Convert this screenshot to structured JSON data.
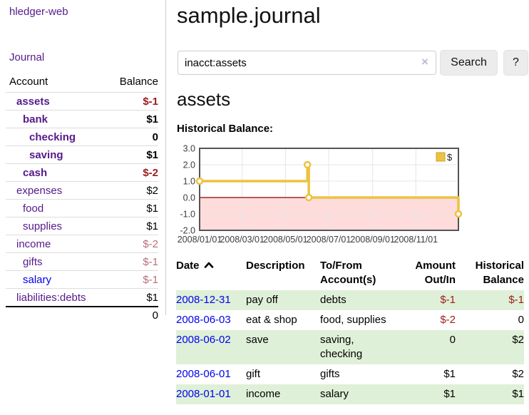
{
  "sidebar": {
    "title": "hledger-web",
    "journal_link": "Journal",
    "accounts": {
      "account_header": "Account",
      "balance_header": "Balance",
      "rows": [
        {
          "name": "assets",
          "level": 1,
          "bold": true,
          "balance": "$-1",
          "balance_style": "negstrong",
          "name_color": "purple"
        },
        {
          "name": "bank",
          "level": 2,
          "bold": true,
          "balance": "$1",
          "balance_style": "num",
          "name_color": "purple"
        },
        {
          "name": "checking",
          "level": 3,
          "bold": true,
          "balance": "0",
          "balance_style": "num",
          "name_color": "purple"
        },
        {
          "name": "saving",
          "level": 3,
          "bold": true,
          "balance": "$1",
          "balance_style": "num",
          "name_color": "purple"
        },
        {
          "name": "cash",
          "level": 2,
          "bold": true,
          "balance": "$-2",
          "balance_style": "negstrong",
          "name_color": "purple"
        },
        {
          "name": "expenses",
          "level": 1,
          "bold": false,
          "balance": "$2",
          "balance_style": "num",
          "name_color": "purple"
        },
        {
          "name": "food",
          "level": 2,
          "bold": false,
          "balance": "$1",
          "balance_style": "num",
          "name_color": "purple"
        },
        {
          "name": "supplies",
          "level": 2,
          "bold": false,
          "balance": "$1",
          "balance_style": "num",
          "name_color": "purple"
        },
        {
          "name": "income",
          "level": 1,
          "bold": false,
          "balance": "$-2",
          "balance_style": "negdim",
          "name_color": "purple"
        },
        {
          "name": "gifts",
          "level": 2,
          "bold": false,
          "balance": "$-1",
          "balance_style": "negdim",
          "name_color": "purple"
        },
        {
          "name": "salary",
          "level": 2,
          "bold": false,
          "balance": "$-1",
          "balance_style": "negdim",
          "name_color": "blue"
        },
        {
          "name": "liabilities:debts",
          "level": 1,
          "bold": false,
          "balance": "$1",
          "balance_style": "num",
          "name_color": "purple"
        }
      ],
      "total": "0"
    }
  },
  "main": {
    "title": "sample.journal",
    "search": {
      "value": "inacct:assets",
      "clear_glyph": "×",
      "button_label": "Search",
      "help_label": "?"
    },
    "account_heading": "assets",
    "chart_label": "Historical Balance:",
    "register": {
      "headers": [
        "Date",
        "Description",
        "To/From Account(s)",
        "Amount Out/In",
        "Historical Balance"
      ],
      "sort_column": "Date",
      "sort_direction": "ascending",
      "rows": [
        {
          "date": "2008-12-31",
          "description": "pay off",
          "accounts": "debts",
          "amount": "$-1",
          "balance": "$-1"
        },
        {
          "date": "2008-06-03",
          "description": "eat & shop",
          "accounts": "food, supplies",
          "amount": "$-2",
          "balance": "0"
        },
        {
          "date": "2008-06-02",
          "description": "save",
          "accounts": "saving, checking",
          "amount": "0",
          "balance": "$2"
        },
        {
          "date": "2008-06-01",
          "description": "gift",
          "accounts": "gifts",
          "amount": "$1",
          "balance": "$2"
        },
        {
          "date": "2008-01-01",
          "description": "income",
          "accounts": "salary",
          "amount": "$1",
          "balance": "$1"
        }
      ]
    }
  },
  "chart_data": {
    "type": "line",
    "step": true,
    "title": "Historical Balance",
    "series": [
      {
        "name": "$",
        "color": "#edc240",
        "points": [
          [
            "2008/01/01",
            1
          ],
          [
            "2008/06/01",
            2
          ],
          [
            "2008/06/03",
            0
          ],
          [
            "2008/12/31",
            -1
          ]
        ]
      }
    ],
    "x_range": [
      "2008/01/01",
      "2008/12/31"
    ],
    "ylim": [
      -2,
      3
    ],
    "y_tick_labels": [
      "3.0",
      "2.0",
      "1.0",
      "0.0",
      "-1.0",
      "-2.0"
    ],
    "x_tick_labels": [
      "2008/01/01",
      "2008/03/01",
      "2008/05/01",
      "2008/07/01",
      "2008/09/01",
      "2008/11/01"
    ],
    "grid": true,
    "legend_position": "top-right",
    "legend_label": "$",
    "colors": {
      "line": "#edc240",
      "marker_fill": "#ffffff",
      "negative_region": "#ffdcdc",
      "zero_line": "#8b0000",
      "plot_border": "#555555",
      "gridline": "#e5e5e5",
      "tick_text": "#3c3c3c"
    }
  }
}
